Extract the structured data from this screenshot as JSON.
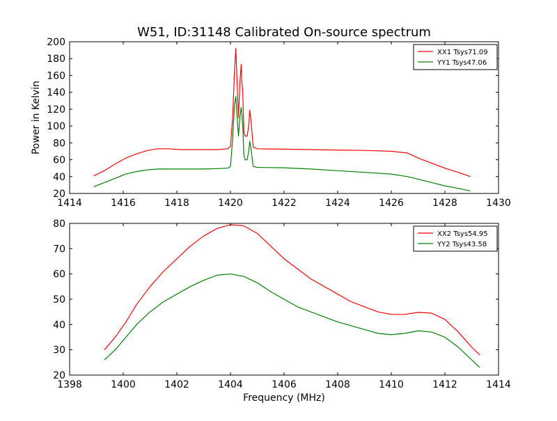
{
  "chart_data": [
    {
      "type": "line",
      "title": "W51, ID:31148 Calibrated On-source spectrum",
      "xlabel": "",
      "ylabel": "Power in Kelvin",
      "xlim": [
        1414,
        1430
      ],
      "ylim": [
        20,
        200
      ],
      "xticks": [
        "1414",
        "1416",
        "1418",
        "1420",
        "1422",
        "1424",
        "1426",
        "1428",
        "1430"
      ],
      "yticks": [
        "20",
        "40",
        "60",
        "80",
        "100",
        "120",
        "140",
        "160",
        "180",
        "200"
      ],
      "grid": false,
      "legend_position": "top-right",
      "series": [
        {
          "name": "XX1 Tsys71.09",
          "color": "#ff0000",
          "x": [
            1414.9,
            1415.3,
            1415.7,
            1416.1,
            1416.5,
            1416.9,
            1417.3,
            1417.7,
            1418.1,
            1418.5,
            1419.0,
            1419.5,
            1419.9,
            1420.0,
            1420.08,
            1420.15,
            1420.2,
            1420.25,
            1420.3,
            1420.35,
            1420.4,
            1420.43,
            1420.46,
            1420.5,
            1420.55,
            1420.62,
            1420.68,
            1420.72,
            1420.77,
            1420.85,
            1421.0,
            1422.0,
            1423.0,
            1424.0,
            1425.0,
            1426.0,
            1426.6,
            1427.0,
            1427.5,
            1428.0,
            1428.5,
            1428.95
          ],
          "y": [
            41,
            47,
            55,
            62,
            67,
            71,
            73,
            73,
            72,
            72,
            72,
            72,
            73,
            76,
            110,
            165,
            192,
            150,
            110,
            150,
            173,
            150,
            140,
            92,
            88,
            88,
            100,
            119,
            105,
            75,
            73,
            72.5,
            72,
            71.5,
            71,
            70,
            68,
            62,
            56,
            50,
            45,
            40
          ]
        },
        {
          "name": "YY1 Tsys47.06",
          "color": "#008000",
          "x": [
            1414.9,
            1415.3,
            1415.7,
            1416.1,
            1416.5,
            1416.9,
            1417.3,
            1417.7,
            1418.1,
            1418.5,
            1419.0,
            1419.5,
            1419.9,
            1420.0,
            1420.08,
            1420.15,
            1420.2,
            1420.25,
            1420.3,
            1420.35,
            1420.4,
            1420.43,
            1420.46,
            1420.5,
            1420.55,
            1420.62,
            1420.68,
            1420.72,
            1420.77,
            1420.85,
            1421.0,
            1422.0,
            1423.0,
            1424.0,
            1425.0,
            1426.0,
            1426.6,
            1427.0,
            1427.5,
            1428.0,
            1428.5,
            1428.95
          ],
          "y": [
            28,
            33,
            38,
            43,
            46,
            48,
            49,
            49,
            49,
            49,
            49,
            49.5,
            50,
            52,
            85,
            125,
            135,
            110,
            88,
            110,
            122,
            112,
            100,
            65,
            60,
            60,
            70,
            82,
            72,
            52,
            51,
            50.5,
            49,
            47,
            45,
            43,
            40,
            37,
            33,
            29,
            26,
            23
          ]
        }
      ]
    },
    {
      "type": "line",
      "title": "",
      "xlabel": "Frequency (MHz)",
      "ylabel": "",
      "xlim": [
        1398,
        1414
      ],
      "ylim": [
        20,
        80
      ],
      "xticks": [
        "1398",
        "1400",
        "1402",
        "1404",
        "1406",
        "1408",
        "1410",
        "1412",
        "1414"
      ],
      "yticks": [
        "20",
        "30",
        "40",
        "50",
        "60",
        "70",
        "80"
      ],
      "grid": false,
      "legend_position": "top-right",
      "series": [
        {
          "name": "XX2 Tsys54.95",
          "color": "#ff0000",
          "x": [
            1399.3,
            1399.7,
            1400.1,
            1400.5,
            1401.0,
            1401.5,
            1402.0,
            1402.5,
            1403.0,
            1403.5,
            1404.0,
            1404.5,
            1405.0,
            1405.5,
            1406.0,
            1406.5,
            1407.0,
            1407.5,
            1408.0,
            1408.5,
            1409.0,
            1409.5,
            1410.0,
            1410.5,
            1411.0,
            1411.5,
            1412.0,
            1412.5,
            1413.0,
            1413.3
          ],
          "y": [
            30,
            35,
            41,
            48,
            55,
            61,
            66,
            71,
            75,
            78,
            79.5,
            79,
            76,
            71,
            66,
            62,
            58,
            55,
            52,
            49,
            47,
            45,
            44,
            44,
            44.8,
            44.5,
            42,
            37,
            31,
            28
          ]
        },
        {
          "name": "YY2 Tsys43.58",
          "color": "#008000",
          "x": [
            1399.3,
            1399.7,
            1400.1,
            1400.5,
            1401.0,
            1401.5,
            1402.0,
            1402.5,
            1403.0,
            1403.5,
            1404.0,
            1404.5,
            1405.0,
            1405.5,
            1406.0,
            1406.5,
            1407.0,
            1407.5,
            1408.0,
            1408.5,
            1409.0,
            1409.5,
            1410.0,
            1410.5,
            1411.0,
            1411.5,
            1412.0,
            1412.5,
            1413.0,
            1413.3
          ],
          "y": [
            26,
            30,
            35,
            40,
            45,
            49,
            52,
            55,
            57.5,
            59.5,
            60,
            59,
            56.5,
            53,
            50,
            47,
            45,
            43,
            41,
            39.5,
            38,
            36.5,
            36,
            36.5,
            37.5,
            37,
            35,
            31,
            26,
            23
          ]
        }
      ]
    }
  ]
}
